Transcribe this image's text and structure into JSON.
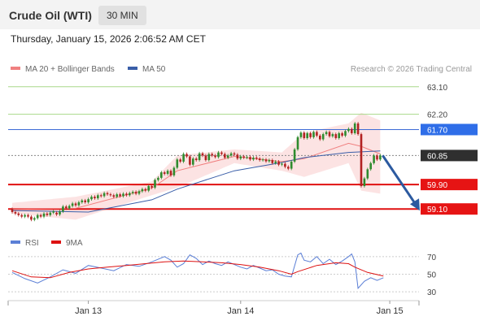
{
  "header": {
    "title": "Crude Oil (WTI)",
    "timeframe": "30 MIN"
  },
  "datetime": "Thursday, January 15, 2026 2:06:52 AM CET",
  "legend": {
    "ma20_label": "MA 20 + Bollinger Bands",
    "ma50_label": "MA 50",
    "ma20_color": "#f08080",
    "ma50_color": "#3a5ea8",
    "copyright": "Research © 2026 Trading Central"
  },
  "rsi_legend": {
    "rsi_label": "RSI",
    "ma_label": "9MA",
    "rsi_color": "#5b7fd6",
    "ma_color": "#dd1111"
  },
  "levels": [
    {
      "value": 63.1,
      "label": "63.10",
      "style": "plain-green"
    },
    {
      "value": 62.2,
      "label": "62.20",
      "style": "plain-green"
    },
    {
      "value": 61.7,
      "label": "61.70",
      "style": "blue-box"
    },
    {
      "value": 60.85,
      "label": "60.85",
      "style": "dark-box"
    },
    {
      "value": 59.9,
      "label": "59.90",
      "style": "red-box"
    },
    {
      "value": 59.1,
      "label": "59.10",
      "style": "red-box"
    }
  ],
  "rsi_levels": [
    "70",
    "50",
    "30"
  ],
  "x_labels": [
    {
      "label": "Jan 13",
      "index": 24
    },
    {
      "label": "Jan 14",
      "index": 72
    },
    {
      "label": "Jan 15",
      "index": 119
    }
  ],
  "chart_data": {
    "type": "candlestick",
    "title": "Crude Oil (WTI)",
    "timeframe": "30 MIN",
    "ylim": [
      58.6,
      63.6
    ],
    "rsi_ylim": [
      20,
      80
    ],
    "candles": [
      [
        59.1,
        59.0
      ],
      [
        59.0,
        58.95
      ],
      [
        58.95,
        58.9
      ],
      [
        58.9,
        58.85
      ],
      [
        58.85,
        58.9
      ],
      [
        58.9,
        58.85
      ],
      [
        58.85,
        58.75
      ],
      [
        58.75,
        58.8
      ],
      [
        58.8,
        58.9
      ],
      [
        58.9,
        58.85
      ],
      [
        58.85,
        58.95
      ],
      [
        58.95,
        58.9
      ],
      [
        58.9,
        58.98
      ],
      [
        58.98,
        59.02
      ],
      [
        58.98,
        58.92
      ],
      [
        58.92,
        59.02
      ],
      [
        59.02,
        59.18
      ],
      [
        59.18,
        59.12
      ],
      [
        59.12,
        59.2
      ],
      [
        59.2,
        59.28
      ],
      [
        59.28,
        59.22
      ],
      [
        59.22,
        59.32
      ],
      [
        59.32,
        59.38
      ],
      [
        59.38,
        59.32
      ],
      [
        59.32,
        59.42
      ],
      [
        59.42,
        59.5
      ],
      [
        59.5,
        59.45
      ],
      [
        59.45,
        59.55
      ],
      [
        59.55,
        59.52
      ],
      [
        59.52,
        59.62
      ],
      [
        59.62,
        59.58
      ],
      [
        59.58,
        59.55
      ],
      [
        59.55,
        59.5
      ],
      [
        59.5,
        59.58
      ],
      [
        59.58,
        59.52
      ],
      [
        59.52,
        59.6
      ],
      [
        59.6,
        59.55
      ],
      [
        59.55,
        59.62
      ],
      [
        59.62,
        59.66
      ],
      [
        59.66,
        59.6
      ],
      [
        59.6,
        59.68
      ],
      [
        59.68,
        59.75
      ],
      [
        59.75,
        59.7
      ],
      [
        59.7,
        59.85
      ],
      [
        59.85,
        59.8
      ],
      [
        59.8,
        60.05
      ],
      [
        60.05,
        60.12
      ],
      [
        60.12,
        60.3
      ],
      [
        60.3,
        60.25
      ],
      [
        60.25,
        60.35
      ],
      [
        60.35,
        60.2
      ],
      [
        60.2,
        60.45
      ],
      [
        60.45,
        60.72
      ],
      [
        60.72,
        60.65
      ],
      [
        60.65,
        60.9
      ],
      [
        60.9,
        60.82
      ],
      [
        60.82,
        60.55
      ],
      [
        60.55,
        60.75
      ],
      [
        60.75,
        60.7
      ],
      [
        60.7,
        60.92
      ],
      [
        60.92,
        60.85
      ],
      [
        60.85,
        60.7
      ],
      [
        60.7,
        60.9
      ],
      [
        60.9,
        60.85
      ],
      [
        60.85,
        60.8
      ],
      [
        60.8,
        60.95
      ],
      [
        60.95,
        60.9
      ],
      [
        60.9,
        60.78
      ],
      [
        60.78,
        60.85
      ],
      [
        60.85,
        60.92
      ],
      [
        60.92,
        60.88
      ],
      [
        60.88,
        60.75
      ],
      [
        60.75,
        60.82
      ],
      [
        60.82,
        60.78
      ],
      [
        60.78,
        60.8
      ],
      [
        60.8,
        60.72
      ],
      [
        60.72,
        60.78
      ],
      [
        60.78,
        60.75
      ],
      [
        60.75,
        60.7
      ],
      [
        60.7,
        60.72
      ],
      [
        60.72,
        60.66
      ],
      [
        60.66,
        60.7
      ],
      [
        60.7,
        60.6
      ],
      [
        60.6,
        60.65
      ],
      [
        60.65,
        60.55
      ],
      [
        60.55,
        60.58
      ],
      [
        60.58,
        60.48
      ],
      [
        60.48,
        60.42
      ],
      [
        60.42,
        60.65
      ],
      [
        60.65,
        61.05
      ],
      [
        61.05,
        61.45
      ],
      [
        61.45,
        61.6
      ],
      [
        61.6,
        61.42
      ],
      [
        61.42,
        61.58
      ],
      [
        61.58,
        61.45
      ],
      [
        61.45,
        61.62
      ],
      [
        61.62,
        61.5
      ],
      [
        61.5,
        61.38
      ],
      [
        61.38,
        61.55
      ],
      [
        61.55,
        61.62
      ],
      [
        61.62,
        61.48
      ],
      [
        61.48,
        61.55
      ],
      [
        61.55,
        61.42
      ],
      [
        61.42,
        61.58
      ],
      [
        61.58,
        61.5
      ],
      [
        61.5,
        61.65
      ],
      [
        61.65,
        61.72
      ],
      [
        61.72,
        61.58
      ],
      [
        61.58,
        61.9
      ],
      [
        61.9,
        61.55
      ],
      [
        61.55,
        59.85
      ],
      [
        59.85,
        60.1
      ],
      [
        60.1,
        60.4
      ],
      [
        60.4,
        60.6
      ],
      [
        60.6,
        60.85
      ],
      [
        60.85,
        60.72
      ],
      [
        60.72,
        60.85
      ]
    ],
    "bollinger": {
      "upper": [
        [
          0,
          59.3
        ],
        [
          20,
          59.5
        ],
        [
          44,
          60.0
        ],
        [
          52,
          60.85
        ],
        [
          70,
          61.05
        ],
        [
          85,
          60.95
        ],
        [
          92,
          61.6
        ],
        [
          106,
          61.9
        ],
        [
          110,
          62.25
        ],
        [
          116,
          62.0
        ]
      ],
      "lower": [
        [
          0,
          58.95
        ],
        [
          20,
          58.75
        ],
        [
          44,
          59.55
        ],
        [
          52,
          59.8
        ],
        [
          70,
          60.6
        ],
        [
          85,
          60.35
        ],
        [
          92,
          60.15
        ],
        [
          106,
          60.6
        ],
        [
          110,
          59.7
        ],
        [
          116,
          59.6
        ]
      ]
    },
    "ma20": [
      [
        0,
        59.1
      ],
      [
        20,
        59.12
      ],
      [
        44,
        59.78
      ],
      [
        52,
        60.35
      ],
      [
        70,
        60.82
      ],
      [
        85,
        60.65
      ],
      [
        92,
        60.75
      ],
      [
        106,
        61.25
      ],
      [
        110,
        61.15
      ],
      [
        116,
        60.9
      ]
    ],
    "ma50": [
      [
        0,
        59.05
      ],
      [
        24,
        59.0
      ],
      [
        44,
        59.4
      ],
      [
        52,
        59.75
      ],
      [
        70,
        60.35
      ],
      [
        85,
        60.62
      ],
      [
        92,
        60.78
      ],
      [
        106,
        60.95
      ],
      [
        116,
        61.0
      ]
    ],
    "rsi": [
      [
        0,
        52
      ],
      [
        4,
        45
      ],
      [
        8,
        40
      ],
      [
        12,
        47
      ],
      [
        16,
        55
      ],
      [
        20,
        51
      ],
      [
        24,
        60
      ],
      [
        28,
        57
      ],
      [
        32,
        54
      ],
      [
        36,
        61
      ],
      [
        40,
        59
      ],
      [
        44,
        64
      ],
      [
        48,
        70
      ],
      [
        50,
        66
      ],
      [
        52,
        58
      ],
      [
        54,
        62
      ],
      [
        56,
        72
      ],
      [
        58,
        68
      ],
      [
        60,
        61
      ],
      [
        62,
        65
      ],
      [
        64,
        62
      ],
      [
        66,
        60
      ],
      [
        68,
        64
      ],
      [
        70,
        61
      ],
      [
        72,
        58
      ],
      [
        74,
        56
      ],
      [
        76,
        60
      ],
      [
        78,
        57
      ],
      [
        80,
        54
      ],
      [
        82,
        55
      ],
      [
        84,
        50
      ],
      [
        86,
        48
      ],
      [
        88,
        47
      ],
      [
        90,
        72
      ],
      [
        91,
        74
      ],
      [
        92,
        66
      ],
      [
        94,
        64
      ],
      [
        96,
        70
      ],
      [
        98,
        62
      ],
      [
        100,
        67
      ],
      [
        102,
        61
      ],
      [
        104,
        65
      ],
      [
        106,
        70
      ],
      [
        107,
        73
      ],
      [
        108,
        64
      ],
      [
        109,
        34
      ],
      [
        111,
        42
      ],
      [
        113,
        46
      ],
      [
        115,
        43
      ],
      [
        117,
        46
      ]
    ],
    "rsi_ma": [
      [
        0,
        54
      ],
      [
        6,
        47
      ],
      [
        12,
        46
      ],
      [
        18,
        52
      ],
      [
        24,
        56
      ],
      [
        30,
        58
      ],
      [
        36,
        60
      ],
      [
        42,
        62
      ],
      [
        48,
        64
      ],
      [
        54,
        65
      ],
      [
        60,
        64
      ],
      [
        66,
        63
      ],
      [
        72,
        61
      ],
      [
        78,
        58
      ],
      [
        84,
        54
      ],
      [
        88,
        50
      ],
      [
        90,
        53
      ],
      [
        96,
        60
      ],
      [
        102,
        63
      ],
      [
        106,
        62
      ],
      [
        108,
        58
      ],
      [
        112,
        52
      ],
      [
        117,
        48
      ]
    ],
    "forecast_arrow": {
      "from": 60.85,
      "to": 59.1
    }
  }
}
